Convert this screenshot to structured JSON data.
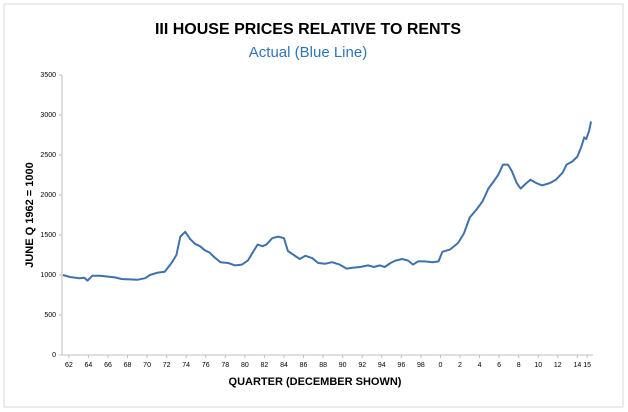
{
  "chart_data": {
    "type": "line",
    "title": "III HOUSE PRICES RELATIVE TO RENTS",
    "subtitle": "Actual (Blue Line)",
    "xlabel": "QUARTER (DECEMBER SHOWN)",
    "ylabel": "JUNE Q 1962 = 1000",
    "color": "#3f72aa",
    "grid": false,
    "x": [
      1961.4,
      1962.1,
      1963.1,
      1963.6,
      1963.9,
      1964.4,
      1965.2,
      1966,
      1966.7,
      1967.4,
      1968.2,
      1969,
      1969.8,
      1970.3,
      1971.1,
      1971.8,
      1972.5,
      1973,
      1973.4,
      1973.9,
      1974.4,
      1974.9,
      1975.4,
      1975.9,
      1976.4,
      1976.9,
      1977.5,
      1978.3,
      1979,
      1979.7,
      1980.3,
      1980.9,
      1981.3,
      1981.8,
      1982.2,
      1982.8,
      1983.4,
      1984,
      1984.4,
      1985,
      1985.6,
      1986.2,
      1986.9,
      1987.5,
      1988.2,
      1988.9,
      1989.7,
      1990.4,
      1991,
      1991.8,
      1992.6,
      1993.2,
      1993.8,
      1994.3,
      1994.9,
      1995.4,
      1996.1,
      1996.7,
      1997.2,
      1997.7,
      1998.4,
      1999.2,
      1999.8,
      2000.2,
      2001,
      2001.8,
      2002.4,
      2003,
      2003.7,
      2004.3,
      2004.9,
      2005.5,
      2005.9,
      2006.4,
      2006.9,
      2007.3,
      2007.8,
      2008.2,
      2008.8,
      2009.2,
      2009.8,
      2010.4,
      2011.2,
      2011.8,
      2012.5,
      2012.9,
      2013.5,
      2014,
      2014.4,
      2014.7,
      2014.9,
      2015.2,
      2015.4
    ],
    "values": [
      1000,
      975,
      960,
      965,
      930,
      990,
      990,
      980,
      970,
      950,
      945,
      940,
      960,
      1000,
      1030,
      1040,
      1150,
      1250,
      1480,
      1540,
      1450,
      1390,
      1360,
      1310,
      1280,
      1220,
      1160,
      1150,
      1120,
      1130,
      1180,
      1300,
      1380,
      1360,
      1380,
      1460,
      1480,
      1460,
      1300,
      1250,
      1200,
      1240,
      1210,
      1150,
      1140,
      1160,
      1130,
      1080,
      1090,
      1100,
      1120,
      1100,
      1120,
      1100,
      1150,
      1180,
      1200,
      1180,
      1130,
      1170,
      1170,
      1160,
      1170,
      1290,
      1320,
      1400,
      1520,
      1720,
      1820,
      1920,
      2080,
      2180,
      2250,
      2380,
      2380,
      2300,
      2150,
      2080,
      2150,
      2190,
      2150,
      2120,
      2150,
      2190,
      2280,
      2380,
      2420,
      2480,
      2600,
      2720,
      2700,
      2800,
      2920
    ],
    "xlim": [
      1961.3,
      2015.6
    ],
    "xticks": [
      {
        "value": 1962,
        "label": "62"
      },
      {
        "value": 1964,
        "label": "64"
      },
      {
        "value": 1966,
        "label": "66"
      },
      {
        "value": 1968,
        "label": "68"
      },
      {
        "value": 1970,
        "label": "70"
      },
      {
        "value": 1972,
        "label": "72"
      },
      {
        "value": 1974,
        "label": "74"
      },
      {
        "value": 1976,
        "label": "76"
      },
      {
        "value": 1978,
        "label": "78"
      },
      {
        "value": 1980,
        "label": "80"
      },
      {
        "value": 1982,
        "label": "82"
      },
      {
        "value": 1984,
        "label": "84"
      },
      {
        "value": 1986,
        "label": "86"
      },
      {
        "value": 1988,
        "label": "88"
      },
      {
        "value": 1990,
        "label": "90"
      },
      {
        "value": 1992,
        "label": "92"
      },
      {
        "value": 1994,
        "label": "94"
      },
      {
        "value": 1996,
        "label": "96"
      },
      {
        "value": 1998,
        "label": "98"
      },
      {
        "value": 2000,
        "label": "0"
      },
      {
        "value": 2002,
        "label": "2"
      },
      {
        "value": 2004,
        "label": "4"
      },
      {
        "value": 2006,
        "label": "6"
      },
      {
        "value": 2008,
        "label": "8"
      },
      {
        "value": 2010,
        "label": "10"
      },
      {
        "value": 2012,
        "label": "12"
      },
      {
        "value": 2014,
        "label": "14"
      },
      {
        "value": 2015,
        "label": "15"
      }
    ],
    "ylim": [
      0,
      3500
    ],
    "yticks": [
      0,
      500,
      1000,
      1500,
      2000,
      2500,
      3000,
      3500
    ]
  }
}
